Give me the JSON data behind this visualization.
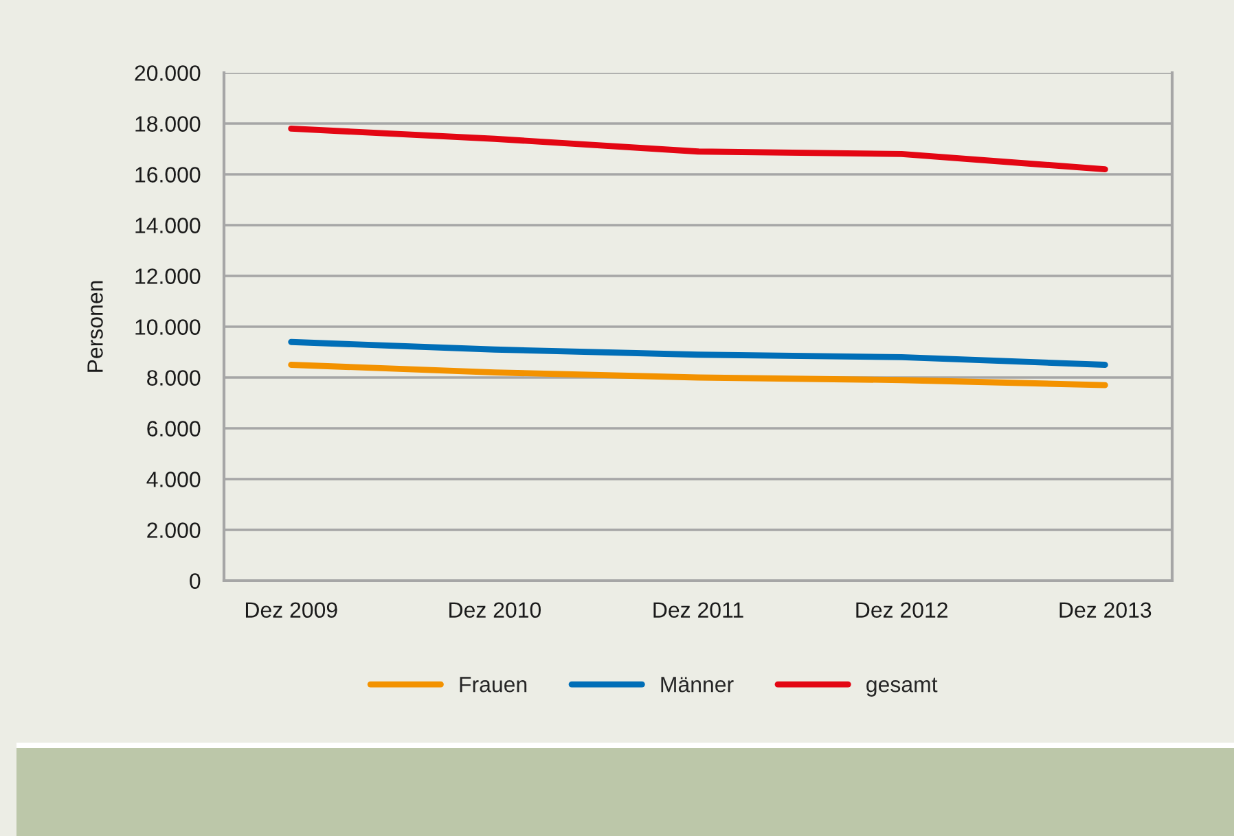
{
  "chart_data": {
    "type": "line",
    "ylabel": "Personen",
    "categories": [
      "Dez 2009",
      "Dez 2010",
      "Dez 2011",
      "Dez 2012",
      "Dez 2013"
    ],
    "series": [
      {
        "name": "Frauen",
        "color": "#f39200",
        "values": [
          8500,
          8200,
          8000,
          7900,
          7700
        ]
      },
      {
        "name": "Männer",
        "color": "#006eb7",
        "values": [
          9400,
          9100,
          8900,
          8800,
          8500
        ]
      },
      {
        "name": "gesamt",
        "color": "#e30613",
        "values": [
          17800,
          17400,
          16900,
          16800,
          16200
        ]
      }
    ],
    "ylim": [
      0,
      20000
    ],
    "yticks": [
      0,
      {
        "value": 2000,
        "label": "2.000"
      },
      {
        "value": 4000,
        "label": "4.000"
      },
      {
        "value": 6000,
        "label": "6.000"
      },
      {
        "value": 8000,
        "label": "8.000"
      },
      {
        "value": 10000,
        "label": "10.000"
      },
      {
        "value": 12000,
        "label": "12.000"
      },
      {
        "value": 14000,
        "label": "14.000"
      },
      {
        "value": 16000,
        "label": "16.000"
      },
      {
        "value": 18000,
        "label": "18.000"
      },
      {
        "value": 20000,
        "label": "20.000"
      }
    ],
    "grid": "y",
    "legend": "bottom",
    "marker": "none",
    "line_style": "solid"
  }
}
